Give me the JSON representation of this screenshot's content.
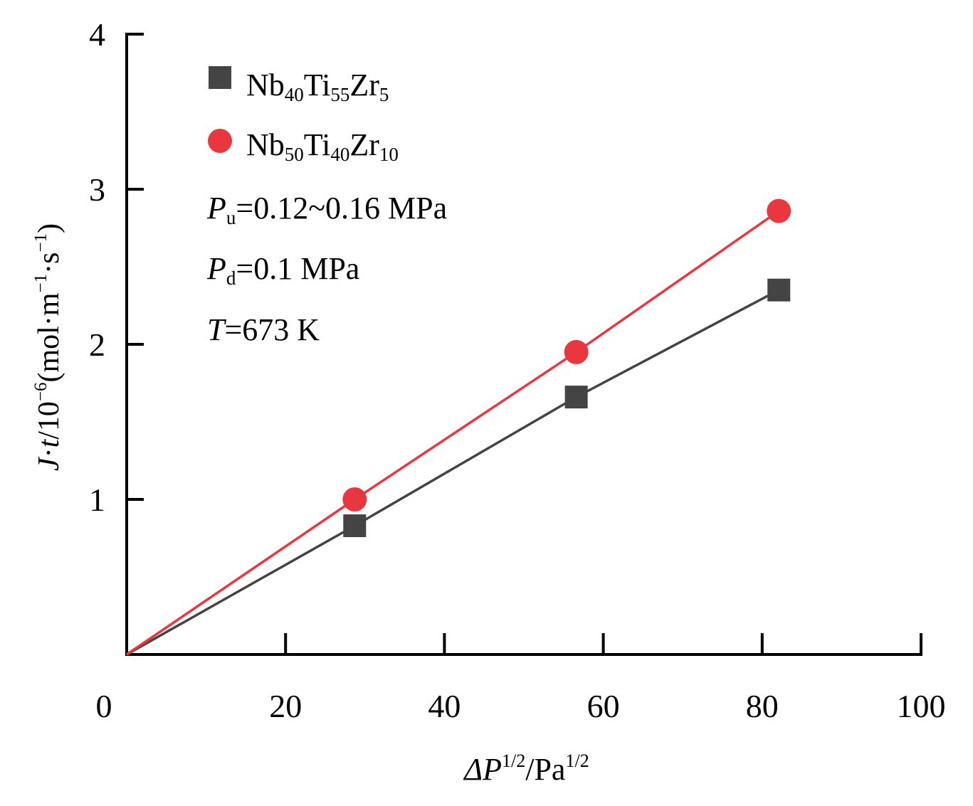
{
  "chart_data": {
    "type": "scatter",
    "xlabel": {
      "prefix": "ΔP",
      "sup1": "1/2",
      "mid": "/Pa",
      "sup2": "1/2"
    },
    "ylabel": {
      "italic1": "J",
      "dot1": "·",
      "italic2": "t",
      "mid": "/10",
      "sup1": "−6",
      "unit": "(mol·m",
      "sup2": "−1",
      "mid2": "·s",
      "sup3": "−1",
      "end": ")"
    },
    "xlim": [
      0,
      100
    ],
    "ylim": [
      0,
      4
    ],
    "xticks": [
      0,
      20,
      40,
      60,
      80,
      100
    ],
    "yticks": [
      1,
      2,
      3,
      4
    ],
    "xtick_labels": [
      "0",
      "20",
      "40",
      "60",
      "80",
      "100"
    ],
    "ytick_labels": [
      "1",
      "2",
      "3",
      "4"
    ],
    "grid": false,
    "legend_position": "top-left",
    "series": [
      {
        "name": "Nb40Ti55Zr5",
        "legend": {
          "base1": "Nb",
          "sub1": "40",
          "base2": "Ti",
          "sub2": "55",
          "base3": "Zr",
          "sub3": "5"
        },
        "marker": "square",
        "color": "#444444",
        "x": [
          0,
          28.7,
          56.6,
          82.1
        ],
        "y": [
          0,
          0.83,
          1.66,
          2.35
        ]
      },
      {
        "name": "Nb50Ti40Zr10",
        "legend": {
          "base1": "Nb",
          "sub1": "50",
          "base2": "Ti",
          "sub2": "40",
          "base3": "Zr",
          "sub3": "10"
        },
        "marker": "circle",
        "color": "#e8373f",
        "x": [
          0,
          28.7,
          56.6,
          82.1
        ],
        "y": [
          0,
          1.0,
          1.95,
          2.86
        ]
      }
    ],
    "annotations": [
      {
        "italic": "P",
        "sub": "u",
        "rest": "=0.12~0.16 MPa"
      },
      {
        "italic": "P",
        "sub": "d",
        "rest": "=0.1 MPa"
      },
      {
        "italic": "T",
        "sub": "",
        "rest": "=673 K"
      }
    ]
  }
}
